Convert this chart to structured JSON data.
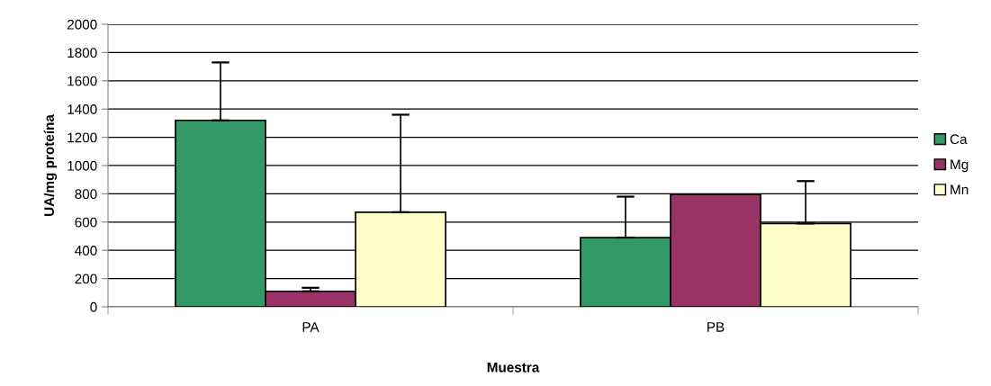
{
  "chart_data": {
    "type": "bar",
    "xlabel": "Muestra",
    "ylabel": "UA/mg proteína",
    "categories": [
      "PA",
      "PB"
    ],
    "series": [
      {
        "name": "Ca",
        "color": "#339966",
        "values": [
          1320,
          490
        ],
        "errors": [
          [
            1320,
            1730
          ],
          [
            490,
            780
          ]
        ]
      },
      {
        "name": "Mg",
        "color": "#993366",
        "values": [
          110,
          795
        ],
        "errors": [
          [
            110,
            135
          ],
          null
        ]
      },
      {
        "name": "Mn",
        "color": "#ffffcc",
        "values": [
          670,
          590
        ],
        "errors": [
          [
            670,
            1360
          ],
          [
            590,
            890
          ]
        ]
      }
    ],
    "ylim": [
      0,
      2000
    ],
    "yticks": [
      0,
      200,
      400,
      600,
      800,
      1000,
      1200,
      1400,
      1600,
      1800,
      2000
    ],
    "grid": "y",
    "legend": "right"
  }
}
